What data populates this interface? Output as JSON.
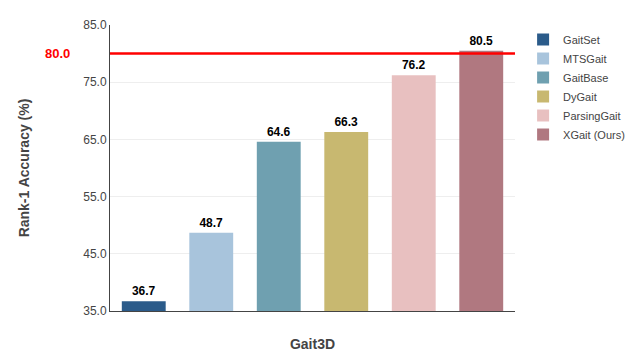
{
  "chart_data": {
    "type": "bar",
    "categories": [
      "GaitSet",
      "MTSGait",
      "GaitBase",
      "DyGait",
      "ParsingGait",
      "XGait (Ours)"
    ],
    "values": [
      36.7,
      48.7,
      64.6,
      66.3,
      76.2,
      80.5
    ],
    "colors": [
      "#2b5b8a",
      "#a8c4dc",
      "#6fa0b0",
      "#c8b870",
      "#e8c0c0",
      "#b07880"
    ],
    "xlabel": "Gait3D",
    "ylabel": "Rank-1 Accuracy (%)",
    "ylim": [
      35.0,
      85.0
    ],
    "yticks": [
      {
        "value": 35.0,
        "label": "35.0"
      },
      {
        "value": 45.0,
        "label": "45.0"
      },
      {
        "value": 55.0,
        "label": "55.0"
      },
      {
        "value": 65.0,
        "label": "65.0"
      },
      {
        "value": 75.0,
        "label": "75.0"
      },
      {
        "value": 85.0,
        "label": "85.0"
      }
    ],
    "hline": {
      "y": 80.0,
      "label": "80.0",
      "color": "#ff0000"
    },
    "grid": true,
    "legend": "right",
    "data_labels": true,
    "tick_labels": "y"
  }
}
